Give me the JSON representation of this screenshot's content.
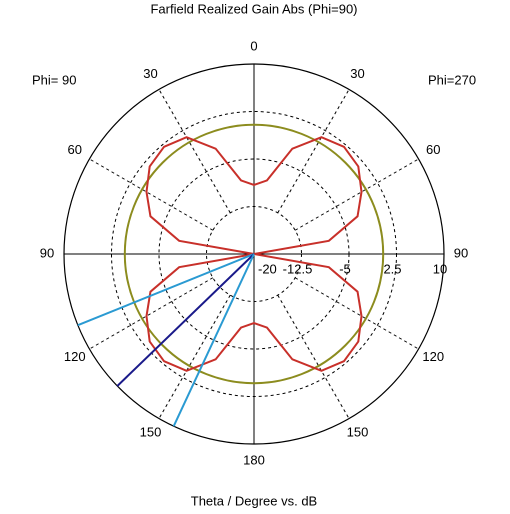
{
  "chart_data": {
    "type": "polar",
    "title": "Farfield Realized Gain Abs (Phi=90)",
    "xlabel": "Theta / Degree vs. dB",
    "annotations": [
      "Phi= 90",
      "Phi=270"
    ],
    "x": [
      0,
      10,
      20,
      30,
      40,
      50,
      60,
      70,
      80,
      90,
      100,
      110,
      120,
      130,
      140,
      150,
      160,
      170,
      180,
      190,
      200,
      210,
      220,
      230,
      240,
      250,
      260,
      270,
      280,
      290,
      300,
      310,
      320,
      330,
      340,
      350
    ],
    "series": [
      {
        "color": "#c8302a",
        "values": [
          -9.1,
          -8.2,
          -2.3,
          1.3,
          2.1,
          1.5,
          -0.4,
          -2.6,
          -8,
          -20,
          -8,
          -2.6,
          -0.4,
          1.5,
          2.1,
          1.3,
          -2.3,
          -8.2,
          -9.1,
          -8.2,
          -2.3,
          1.3,
          2.1,
          1.5,
          -0.4,
          -2.6,
          -8,
          -20,
          -8,
          -2.6,
          -0.4,
          1.5,
          2.1,
          1.3,
          -2.3,
          -8.2
        ]
      }
    ],
    "reference_circle": {
      "color": "#8c8c1e",
      "value": 0.4
    },
    "lines": [
      {
        "color": "#2a9ad2",
        "angle": 248
      },
      {
        "color": "#1a1a8a",
        "angle": 226
      },
      {
        "color": "#2a9ad2",
        "angle": 205
      }
    ],
    "xlim": [
      0,
      360
    ],
    "xticks": [
      0,
      30,
      60,
      90,
      120,
      150,
      180,
      {
        "value": 210,
        "label": "150"
      },
      {
        "value": 240,
        "label": "120"
      },
      {
        "value": 270,
        "label": "90"
      },
      {
        "value": 300,
        "label": "60"
      },
      {
        "value": 330,
        "label": "30"
      }
    ],
    "ylim": [
      -20,
      10
    ],
    "yticks": [
      -20,
      -12.5,
      -5,
      2.5,
      10
    ],
    "grid": true
  }
}
